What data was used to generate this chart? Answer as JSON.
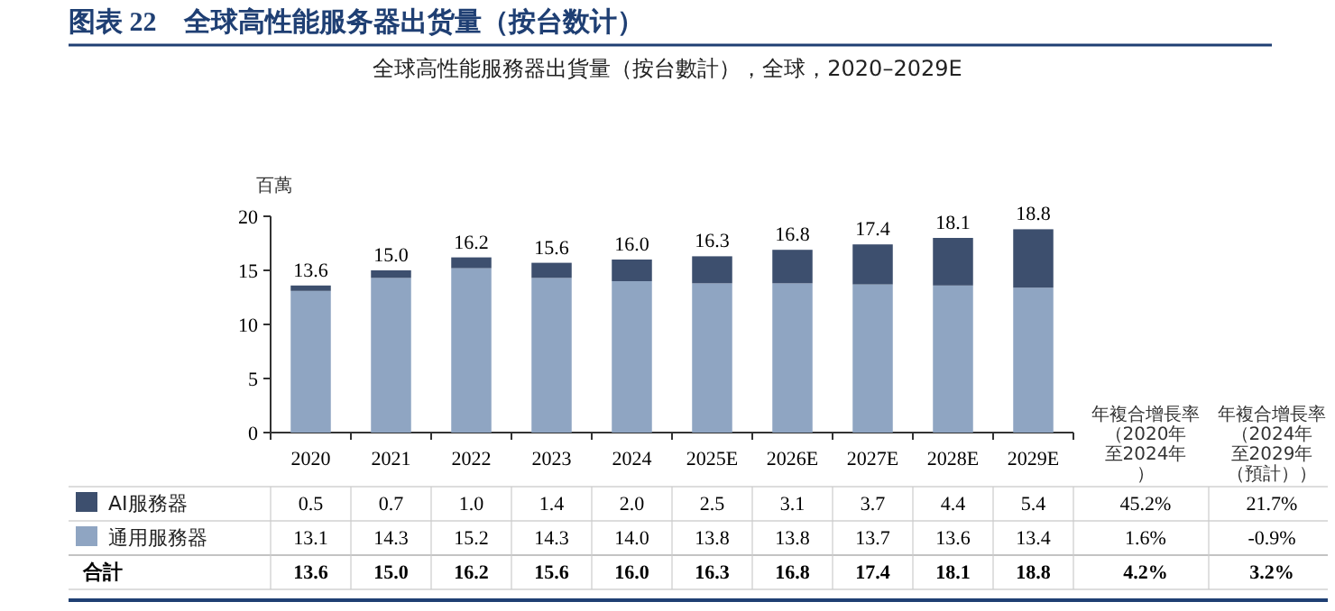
{
  "chart_data": {
    "type": "bar",
    "stacked": true,
    "title": "图表 22　全球高性能服务器出货量（按台数计）",
    "subtitle": "全球高性能服務器出貨量（按台數計），全球，2020–2029E",
    "ylabel": "百萬",
    "categories": [
      "2020",
      "2021",
      "2022",
      "2023",
      "2024",
      "2025E",
      "2026E",
      "2027E",
      "2028E",
      "2029E"
    ],
    "series": [
      {
        "name": "通用服務器",
        "color": "#8fa5c2",
        "values": [
          13.1,
          14.3,
          15.2,
          14.3,
          14.0,
          13.8,
          13.8,
          13.7,
          13.6,
          13.4
        ],
        "value_labels": [
          "13.1",
          "14.3",
          "15.2",
          "14.3",
          "14.0",
          "13.8",
          "13.8",
          "13.7",
          "13.6",
          "13.4"
        ]
      },
      {
        "name": "AI服務器",
        "color": "#3d4f6e",
        "values": [
          0.5,
          0.7,
          1.0,
          1.4,
          2.0,
          2.5,
          3.1,
          3.7,
          4.4,
          5.4
        ],
        "value_labels": [
          "0.5",
          "0.7",
          "1.0",
          "1.4",
          "2.0",
          "2.5",
          "3.1",
          "3.7",
          "4.4",
          "5.4"
        ]
      }
    ],
    "totals": [
      "13.6",
      "15.0",
      "16.2",
      "15.6",
      "16.0",
      "16.3",
      "16.8",
      "17.4",
      "18.1",
      "18.8"
    ],
    "legend": "bottom left",
    "ylim": [
      0,
      20
    ],
    "yticks": [
      0,
      5,
      10,
      15,
      20
    ],
    "grid": false,
    "annotations": [
      "年複合增長率（2020年至2024年）",
      "年複合增長率（2024年至2029年（預計））",
      "合計",
      "1.6%",
      "-0.9%",
      "45.2%",
      "21.7%",
      "4.2%",
      "3.2%"
    ]
  }
}
